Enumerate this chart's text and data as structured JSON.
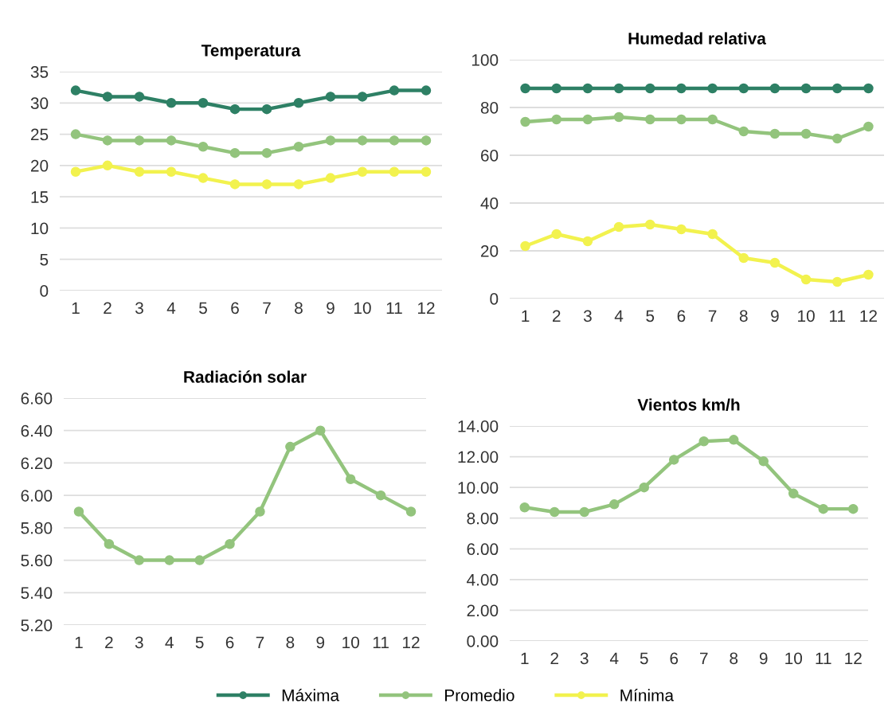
{
  "chart_data": [
    {
      "type": "line",
      "title": "Temperatura",
      "categories": [
        "1",
        "2",
        "3",
        "4",
        "5",
        "6",
        "7",
        "8",
        "9",
        "10",
        "11",
        "12"
      ],
      "ylim": [
        0,
        35
      ],
      "yticks": [
        0,
        5,
        10,
        15,
        20,
        25,
        30,
        35
      ],
      "grid": "y",
      "marker": "circle",
      "legend": "bottom",
      "series": [
        {
          "name": "Máxima",
          "color": "#2e8065",
          "values": [
            32,
            31,
            31,
            30,
            30,
            29,
            29,
            30,
            31,
            31,
            32,
            32
          ]
        },
        {
          "name": "Promedio",
          "color": "#93c47d",
          "values": [
            25,
            24,
            24,
            24,
            23,
            22,
            22,
            23,
            24,
            24,
            24,
            24
          ]
        },
        {
          "name": "Mínima",
          "color": "#f2f24e",
          "values": [
            19,
            20,
            19,
            19,
            18,
            17,
            17,
            17,
            18,
            19,
            19,
            19
          ]
        }
      ]
    },
    {
      "type": "line",
      "title": "Humedad relativa",
      "categories": [
        "1",
        "2",
        "3",
        "4",
        "5",
        "6",
        "7",
        "8",
        "9",
        "10",
        "11",
        "12"
      ],
      "ylim": [
        0,
        100
      ],
      "yticks": [
        0,
        20,
        40,
        60,
        80,
        100
      ],
      "grid": "y",
      "marker": "circle",
      "legend": "bottom",
      "series": [
        {
          "name": "Máxima",
          "color": "#2e8065",
          "values": [
            88,
            88,
            88,
            88,
            88,
            88,
            88,
            88,
            88,
            88,
            88,
            88
          ]
        },
        {
          "name": "Promedio",
          "color": "#93c47d",
          "values": [
            74,
            75,
            75,
            76,
            75,
            75,
            75,
            70,
            69,
            69,
            67,
            72
          ]
        },
        {
          "name": "Mínima",
          "color": "#f2f24e",
          "values": [
            22,
            27,
            24,
            30,
            31,
            29,
            27,
            17,
            15,
            8,
            7,
            10
          ]
        }
      ]
    },
    {
      "type": "line",
      "title": "Radiación solar",
      "categories": [
        "1",
        "2",
        "3",
        "4",
        "5",
        "6",
        "7",
        "8",
        "9",
        "10",
        "11",
        "12"
      ],
      "ylim": [
        5.2,
        6.6
      ],
      "yticks": [
        {
          "value": 5.2,
          "label": "5.20"
        },
        {
          "value": 5.4,
          "label": "5.40"
        },
        {
          "value": 5.6,
          "label": "5.60"
        },
        {
          "value": 5.8,
          "label": "5.80"
        },
        {
          "value": 6.0,
          "label": "6.00"
        },
        {
          "value": 6.2,
          "label": "6.20"
        },
        {
          "value": 6.4,
          "label": "6.40"
        },
        {
          "value": 6.6,
          "label": "6.60"
        }
      ],
      "grid": "y",
      "marker": "circle",
      "legend": "bottom",
      "series": [
        {
          "name": "Promedio",
          "color": "#93c47d",
          "values": [
            5.9,
            5.7,
            5.6,
            5.6,
            5.6,
            5.7,
            5.9,
            6.3,
            6.4,
            6.1,
            6.0,
            5.9
          ]
        }
      ]
    },
    {
      "type": "line",
      "title": "Vientos km/h",
      "categories": [
        "1",
        "2",
        "3",
        "4",
        "5",
        "6",
        "7",
        "8",
        "9",
        "10",
        "11",
        "12"
      ],
      "ylim": [
        0,
        14
      ],
      "yticks": [
        {
          "value": 0,
          "label": "0.00"
        },
        {
          "value": 2,
          "label": "2.00"
        },
        {
          "value": 4,
          "label": "4.00"
        },
        {
          "value": 6,
          "label": "6.00"
        },
        {
          "value": 8,
          "label": "8.00"
        },
        {
          "value": 10,
          "label": "10.00"
        },
        {
          "value": 12,
          "label": "12.00"
        },
        {
          "value": 14,
          "label": "14.00"
        }
      ],
      "grid": "y",
      "marker": "circle",
      "legend": "bottom",
      "series": [
        {
          "name": "Promedio",
          "color": "#93c47d",
          "values": [
            8.7,
            8.4,
            8.4,
            8.9,
            10.0,
            11.8,
            13.0,
            13.1,
            11.7,
            9.6,
            8.6,
            8.6
          ]
        }
      ]
    }
  ]
}
